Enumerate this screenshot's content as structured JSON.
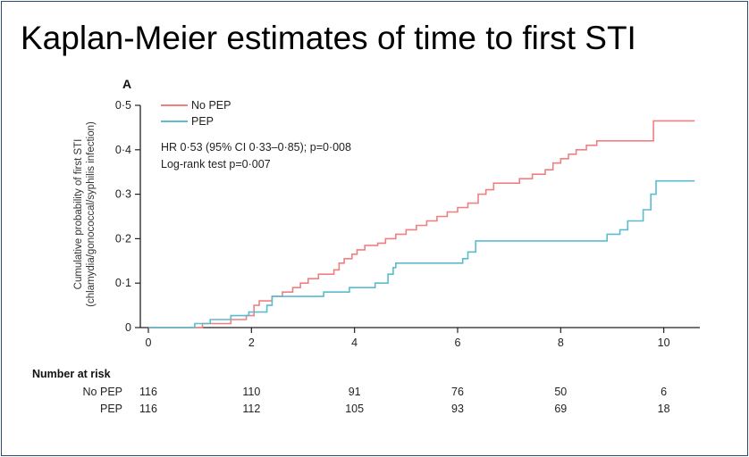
{
  "slide": {
    "title": "Kaplan-Meier estimates of time to first STI"
  },
  "colors": {
    "no_pep": "#f08080",
    "pep": "#5bbccd",
    "axis": "#222222",
    "border": "#2d4a73"
  },
  "chart_data": {
    "type": "line",
    "panel_label": "A",
    "ylabel": "Cumulative probability of first STI",
    "ylabel_2": "(chlamydia/gonococcal/syphilis infection)",
    "ylim": [
      0,
      0.5
    ],
    "xlim": [
      0,
      10.7
    ],
    "x_ticks": [
      0,
      2,
      4,
      6,
      8,
      10
    ],
    "x_tick_labels": [
      "0",
      "2",
      "4",
      "6",
      "8",
      "10"
    ],
    "y_ticks": [
      0,
      0.1,
      0.2,
      0.3,
      0.4,
      0.5
    ],
    "y_tick_labels": [
      "0",
      "0·1",
      "0·2",
      "0·3",
      "0·4",
      "0·5"
    ],
    "grid": false,
    "legend_position": "top-left",
    "series": [
      {
        "name": "No PEP",
        "color": "#f08080",
        "steps": [
          [
            0,
            0
          ],
          [
            1.05,
            0
          ],
          [
            1.05,
            0.009
          ],
          [
            1.6,
            0.018
          ],
          [
            1.9,
            0.027
          ],
          [
            2.05,
            0.05
          ],
          [
            2.15,
            0.06
          ],
          [
            2.4,
            0.07
          ],
          [
            2.6,
            0.08
          ],
          [
            2.8,
            0.09
          ],
          [
            2.95,
            0.1
          ],
          [
            3.1,
            0.11
          ],
          [
            3.3,
            0.12
          ],
          [
            3.6,
            0.13
          ],
          [
            3.7,
            0.145
          ],
          [
            3.8,
            0.155
          ],
          [
            3.95,
            0.165
          ],
          [
            4.05,
            0.175
          ],
          [
            4.2,
            0.185
          ],
          [
            4.45,
            0.19
          ],
          [
            4.6,
            0.2
          ],
          [
            4.8,
            0.21
          ],
          [
            5.0,
            0.22
          ],
          [
            5.2,
            0.23
          ],
          [
            5.4,
            0.24
          ],
          [
            5.6,
            0.25
          ],
          [
            5.8,
            0.26
          ],
          [
            6.0,
            0.27
          ],
          [
            6.2,
            0.28
          ],
          [
            6.4,
            0.3
          ],
          [
            6.55,
            0.31
          ],
          [
            6.7,
            0.325
          ],
          [
            7.2,
            0.335
          ],
          [
            7.45,
            0.345
          ],
          [
            7.7,
            0.355
          ],
          [
            7.85,
            0.37
          ],
          [
            8.0,
            0.38
          ],
          [
            8.15,
            0.39
          ],
          [
            8.3,
            0.4
          ],
          [
            8.5,
            0.41
          ],
          [
            8.7,
            0.42
          ],
          [
            9.8,
            0.42
          ],
          [
            9.8,
            0.465
          ],
          [
            10.6,
            0.465
          ]
        ]
      },
      {
        "name": "PEP",
        "color": "#5bbccd",
        "steps": [
          [
            0,
            0
          ],
          [
            0.9,
            0
          ],
          [
            0.9,
            0.009
          ],
          [
            1.2,
            0.018
          ],
          [
            1.6,
            0.027
          ],
          [
            1.95,
            0.035
          ],
          [
            2.3,
            0.05
          ],
          [
            2.4,
            0.07
          ],
          [
            3.4,
            0.07
          ],
          [
            3.4,
            0.08
          ],
          [
            3.9,
            0.09
          ],
          [
            4.4,
            0.1
          ],
          [
            4.65,
            0.12
          ],
          [
            4.75,
            0.135
          ],
          [
            4.8,
            0.145
          ],
          [
            6.0,
            0.145
          ],
          [
            6.1,
            0.155
          ],
          [
            6.2,
            0.17
          ],
          [
            6.35,
            0.195
          ],
          [
            8.9,
            0.195
          ],
          [
            8.9,
            0.21
          ],
          [
            9.15,
            0.22
          ],
          [
            9.3,
            0.24
          ],
          [
            9.6,
            0.265
          ],
          [
            9.75,
            0.3
          ],
          [
            9.85,
            0.33
          ],
          [
            10.6,
            0.33
          ]
        ]
      }
    ],
    "annotations": [
      "HR 0·53 (95% CI 0·33–0·85); p=0·008",
      "Log-rank test p=0·007"
    ],
    "number_at_risk": {
      "title": "Number at risk",
      "rows": [
        {
          "label": "No PEP",
          "values": [
            "116",
            "110",
            "91",
            "76",
            "50",
            "6"
          ]
        },
        {
          "label": "PEP",
          "values": [
            "116",
            "112",
            "105",
            "93",
            "69",
            "18"
          ]
        }
      ]
    }
  }
}
